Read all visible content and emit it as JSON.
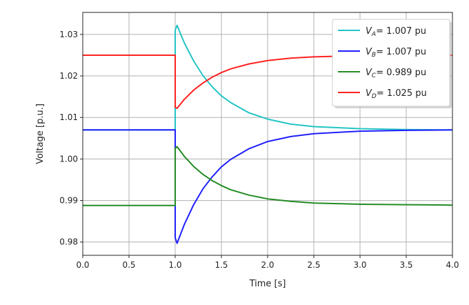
{
  "chart_data": {
    "type": "line",
    "title": "",
    "xlabel": "Time [s]",
    "ylabel": "Voltage [p.u.]",
    "xlim": [
      0,
      4.0
    ],
    "ylim": [
      0.9768,
      1.0353
    ],
    "xticks": [
      "0.0",
      "0.5",
      "1.0",
      "1.5",
      "2.0",
      "2.5",
      "3.0",
      "3.5",
      "4.0"
    ],
    "yticks": [
      "0.98",
      "0.99",
      "1.00",
      "1.01",
      "1.02",
      "1.03"
    ],
    "grid": true,
    "legend_position": "top-right",
    "x": [
      0,
      1.0,
      1.0,
      1.02,
      1.1,
      1.2,
      1.3,
      1.4,
      1.5,
      1.6,
      1.8,
      2.0,
      2.25,
      2.5,
      3.0,
      3.5,
      4.0
    ],
    "series": [
      {
        "name_main": "V",
        "name_sub": "A",
        "name_rest": "= 1.007 pu",
        "color": "#22c4c4",
        "values": [
          1.007,
          1.007,
          1.031,
          1.0322,
          1.0279,
          1.0236,
          1.0201,
          1.0174,
          1.0152,
          1.0136,
          1.0111,
          1.0096,
          1.0084,
          1.0078,
          1.0073,
          1.0071,
          1.007
        ]
      },
      {
        "name_main": "V",
        "name_sub": "B",
        "name_rest": "= 1.007 pu",
        "color": "#1f1fff",
        "values": [
          1.007,
          1.007,
          0.981,
          0.9797,
          0.9843,
          0.989,
          0.9928,
          0.9957,
          0.9981,
          0.9999,
          1.0025,
          1.0042,
          1.0054,
          1.0061,
          1.0067,
          1.0069,
          1.007
        ]
      },
      {
        "name_main": "V",
        "name_sub": "C",
        "name_rest": "= 0.989 pu",
        "color": "#228b22",
        "values": [
          0.9888,
          0.9888,
          1.0025,
          1.003,
          1.0006,
          0.9982,
          0.9963,
          0.9948,
          0.9936,
          0.9926,
          0.9913,
          0.9904,
          0.9898,
          0.9894,
          0.9891,
          0.989,
          0.9889
        ]
      },
      {
        "name_main": "V",
        "name_sub": "D",
        "name_rest": "= 1.025 pu",
        "color": "#ff2020",
        "values": [
          1.025,
          1.025,
          1.0125,
          1.0122,
          1.0144,
          1.0166,
          1.0183,
          1.0197,
          1.0208,
          1.0217,
          1.0229,
          1.0237,
          1.0243,
          1.0246,
          1.0249,
          1.025,
          1.025
        ]
      }
    ]
  }
}
